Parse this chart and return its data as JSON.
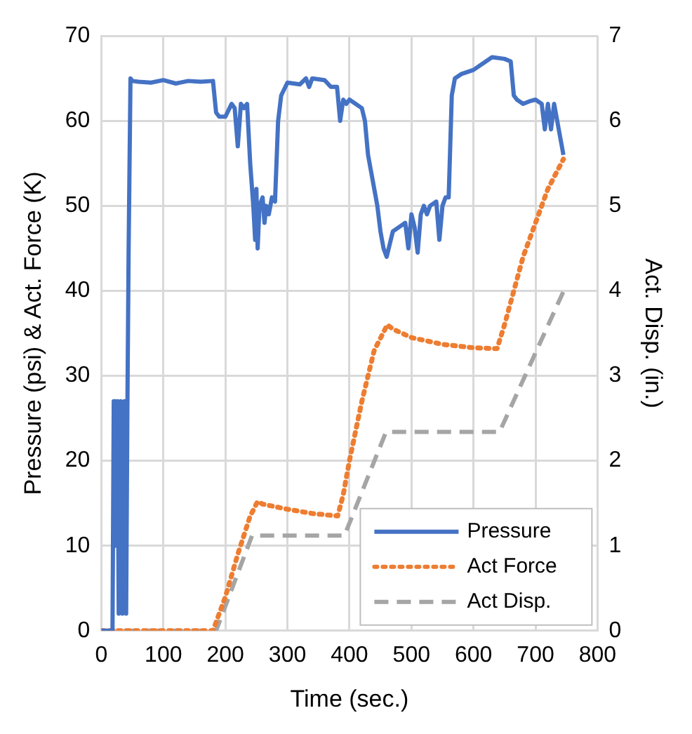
{
  "chart_data": {
    "type": "line",
    "xlabel": "Time (sec.)",
    "ylabel": "Pressure (psi) & Act. Force (K)",
    "y2label": "Act. Disp. (in.)",
    "xlim": [
      0,
      800
    ],
    "xticks": [
      0,
      100,
      200,
      300,
      400,
      500,
      600,
      700,
      800
    ],
    "ylim": [
      0,
      70
    ],
    "yticks": [
      0,
      10,
      20,
      30,
      40,
      50,
      60,
      70
    ],
    "y2lim": [
      0,
      7
    ],
    "y2ticks": [
      0,
      1,
      2,
      3,
      4,
      5,
      6,
      7
    ],
    "grid": true,
    "legend": "bottom right",
    "marker": "none",
    "series": [
      {
        "name": "Pressure",
        "color": "#4472c4",
        "line_style": "solid",
        "x": [
          0,
          18,
          20,
          22,
          26,
          28,
          31,
          34,
          37,
          40,
          42,
          44,
          47,
          50,
          60,
          80,
          100,
          120,
          140,
          160,
          180,
          185,
          190,
          200,
          210,
          215,
          220,
          225,
          230,
          235,
          240,
          245,
          248,
          250,
          252,
          255,
          260,
          263,
          266,
          270,
          275,
          280,
          285,
          290,
          300,
          320,
          330,
          335,
          340,
          360,
          370,
          380,
          385,
          390,
          395,
          400,
          410,
          420,
          425,
          430,
          435,
          440,
          445,
          450,
          455,
          460,
          465,
          470,
          480,
          490,
          495,
          500,
          505,
          510,
          515,
          520,
          525,
          530,
          540,
          545,
          550,
          555,
          560,
          565,
          570,
          580,
          600,
          620,
          630,
          650,
          660,
          665,
          670,
          680,
          690,
          700,
          710,
          715,
          720,
          725,
          730,
          735,
          740,
          745
        ],
        "values": [
          0,
          0,
          27,
          10,
          27,
          2,
          27,
          2,
          27,
          2,
          26,
          45,
          65,
          64.7,
          64.6,
          64.5,
          64.8,
          64.4,
          64.7,
          64.6,
          64.7,
          61,
          60.5,
          60.5,
          62,
          61.5,
          57,
          62,
          61.5,
          62,
          55,
          50,
          46,
          52,
          45,
          50,
          51,
          48,
          50,
          49,
          51,
          50.5,
          60,
          63,
          64.5,
          64.3,
          65,
          64,
          65,
          64.8,
          64,
          64,
          60,
          62.5,
          62,
          62.5,
          62,
          61.5,
          60,
          56,
          54,
          52,
          50,
          47,
          45,
          44,
          45.5,
          47,
          47.5,
          48,
          45,
          49,
          47.5,
          44.5,
          49,
          50,
          49,
          50,
          50.5,
          46,
          50,
          51,
          51,
          63,
          65,
          65.5,
          66,
          67,
          67.5,
          67.3,
          67,
          63,
          62.5,
          62,
          62.3,
          62.5,
          62,
          59,
          62,
          59,
          62,
          60,
          58,
          56
        ]
      },
      {
        "name": "Act Force",
        "color": "#ed7d31",
        "line_style": "dotted",
        "x": [
          0,
          180,
          200,
          220,
          240,
          252,
          260,
          300,
          340,
          381,
          390,
          400,
          420,
          440,
          461,
          470,
          500,
          550,
          600,
          638,
          650,
          680,
          700,
          720,
          745
        ],
        "values": [
          0,
          0,
          4,
          9,
          13.5,
          15.2,
          14.9,
          14.3,
          13.8,
          13.5,
          16,
          20,
          27,
          33,
          36,
          35.5,
          34.5,
          33.7,
          33.3,
          33.2,
          36,
          44,
          48,
          52,
          55.5
        ]
      },
      {
        "name": "Act Disp.",
        "color": "#a5a5a5",
        "line_style": "dashed",
        "axis": "y2",
        "x": [
          0,
          185,
          243,
          392,
          459,
          642,
          748
        ],
        "values": [
          0,
          0,
          1.12,
          1.12,
          2.34,
          2.34,
          4.04
        ]
      }
    ]
  }
}
